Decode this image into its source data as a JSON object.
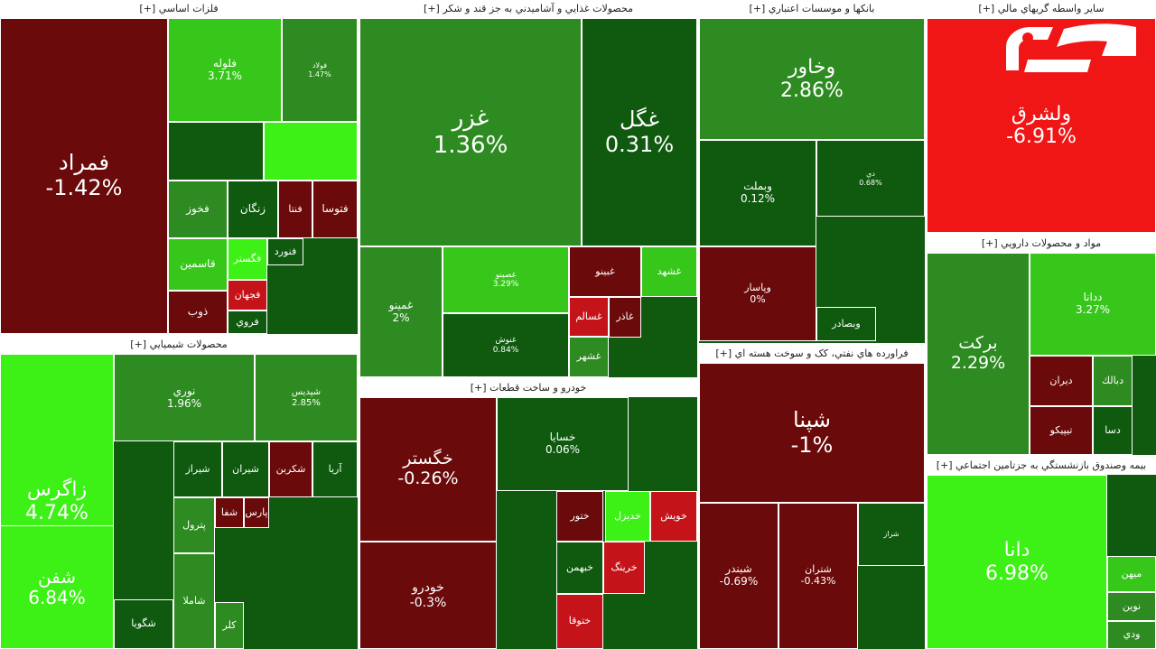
{
  "colors": {
    "dark_red": "#6b0a0a",
    "red": "#c4141a",
    "bright_red": "#f01616",
    "dark_green": "#0f5a0f",
    "green": "#2e8b21",
    "light_green": "#37c71a",
    "bright_green": "#3df016"
  },
  "logo": {
    "name": "rokna-logo",
    "text": "رکنا",
    "color": "#ffffff"
  },
  "sections": [
    {
      "id": "metals",
      "title": "فلزات اساسي [+]",
      "tiles": [
        {
          "name": "فمراد",
          "pct": "-1.42%",
          "c": "dark_red"
        },
        {
          "name": "فلوله",
          "pct": "3.71%",
          "c": "light_green"
        },
        {
          "name": "فولاد",
          "pct": "1.47%",
          "c": "green"
        },
        {
          "name": "",
          "pct": "",
          "c": "dark_green"
        },
        {
          "name": "",
          "pct": "",
          "c": "bright_green"
        },
        {
          "name": "فخوز",
          "pct": "",
          "c": "green"
        },
        {
          "name": "زنگان",
          "pct": "",
          "c": "dark_green"
        },
        {
          "name": "فنتا",
          "pct": "",
          "c": "dark_red"
        },
        {
          "name": "فتوسا",
          "pct": "",
          "c": "dark_red"
        },
        {
          "name": "فگستر",
          "pct": "",
          "c": "bright_green"
        },
        {
          "name": "فنورد",
          "pct": "",
          "c": "dark_green"
        },
        {
          "name": "قاسمين",
          "pct": "",
          "c": "light_green"
        },
        {
          "name": "فجهان",
          "pct": "",
          "c": "red"
        },
        {
          "name": "ذوب",
          "pct": "",
          "c": "dark_red"
        },
        {
          "name": "فروي",
          "pct": "",
          "c": "dark_green"
        }
      ]
    },
    {
      "id": "food",
      "title": "محصولات غذايي و آشاميدني به جز قند و شکر [+]",
      "tiles": [
        {
          "name": "غزر",
          "pct": "1.36%",
          "c": "green"
        },
        {
          "name": "غگل",
          "pct": "0.31%",
          "c": "dark_green"
        },
        {
          "name": "غمينو",
          "pct": "2%",
          "c": "green"
        },
        {
          "name": "غصينو",
          "pct": "3.29%",
          "c": "light_green"
        },
        {
          "name": "غبينو",
          "pct": "",
          "c": "dark_red"
        },
        {
          "name": "غشهد",
          "pct": "",
          "c": "light_green"
        },
        {
          "name": "غنوش",
          "pct": "0.84%",
          "c": "dark_green"
        },
        {
          "name": "غسالم",
          "pct": "",
          "c": "red"
        },
        {
          "name": "غشهر",
          "pct": "",
          "c": "green"
        },
        {
          "name": "غاذر",
          "pct": "",
          "c": "dark_red"
        }
      ]
    },
    {
      "id": "banks",
      "title": "بانکها و موسسات اعتباري [+]",
      "tiles": [
        {
          "name": "وخاور",
          "pct": "2.86%",
          "c": "green"
        },
        {
          "name": "وبملت",
          "pct": "0.12%",
          "c": "dark_green"
        },
        {
          "name": "دي",
          "pct": "0.68%",
          "c": "dark_green"
        },
        {
          "name": "وپاسار",
          "pct": "0%",
          "c": "dark_red"
        },
        {
          "name": "وبصادر",
          "pct": "",
          "c": "dark_green"
        }
      ]
    },
    {
      "id": "financial",
      "title": "ساير واسطه گريهاي مالي [+]",
      "tiles": [
        {
          "name": "ولشرق",
          "pct": "-6.91%",
          "c": "bright_red"
        }
      ]
    },
    {
      "id": "chemical",
      "title": "محصولات شيميايي [+]",
      "tiles": [
        {
          "name": "زاگرس",
          "pct": "4.74%",
          "c": "bright_green"
        },
        {
          "name": "شفن",
          "pct": "6.84%",
          "c": "bright_green"
        },
        {
          "name": "نوري",
          "pct": "1.96%",
          "c": "green"
        },
        {
          "name": "شپديس",
          "pct": "2.85%",
          "c": "green"
        },
        {
          "name": "شيراز",
          "pct": "",
          "c": "dark_green"
        },
        {
          "name": "شيران",
          "pct": "",
          "c": "dark_green"
        },
        {
          "name": "شكربن",
          "pct": "",
          "c": "dark_red"
        },
        {
          "name": "آريا",
          "pct": "",
          "c": "dark_green"
        },
        {
          "name": "پترول",
          "pct": "",
          "c": "green"
        },
        {
          "name": "شفا",
          "pct": "",
          "c": "dark_red"
        },
        {
          "name": "پارس",
          "pct": "",
          "c": "dark_red"
        },
        {
          "name": "شگويا",
          "pct": "",
          "c": "dark_green"
        },
        {
          "name": "شاملا",
          "pct": "",
          "c": "green"
        },
        {
          "name": "كلر",
          "pct": "",
          "c": "green"
        }
      ]
    },
    {
      "id": "auto",
      "title": "خودرو و ساخت قطعات [+]",
      "tiles": [
        {
          "name": "خگستر",
          "pct": "-0.26%",
          "c": "dark_red"
        },
        {
          "name": "خسايا",
          "pct": "0.06%",
          "c": "dark_green"
        },
        {
          "name": "خودرو",
          "pct": "-0.3%",
          "c": "dark_red"
        },
        {
          "name": "ختور",
          "pct": "",
          "c": "dark_red"
        },
        {
          "name": "خديزل",
          "pct": "",
          "c": "bright_green"
        },
        {
          "name": "خويش",
          "pct": "",
          "c": "red"
        },
        {
          "name": "خبهمن",
          "pct": "",
          "c": "dark_green"
        },
        {
          "name": "خرينگ",
          "pct": "",
          "c": "red"
        },
        {
          "name": "ختوقا",
          "pct": "",
          "c": "red"
        }
      ]
    },
    {
      "id": "refinery",
      "title": "فراورده هاي نفتي، کک و سوخت هسته اي [+]",
      "tiles": [
        {
          "name": "شپنا",
          "pct": "-1%",
          "c": "dark_red"
        },
        {
          "name": "شبندر",
          "pct": "-0.69%",
          "c": "dark_red"
        },
        {
          "name": "شتران",
          "pct": "-0.43%",
          "c": "dark_red"
        },
        {
          "name": "شراز",
          "pct": "",
          "c": "dark_green"
        }
      ]
    },
    {
      "id": "pharma",
      "title": "مواد و محصولات دارويي [+]",
      "tiles": [
        {
          "name": "بركت",
          "pct": "2.29%",
          "c": "green"
        },
        {
          "name": "ددانا",
          "pct": "3.27%",
          "c": "light_green"
        },
        {
          "name": "ديران",
          "pct": "",
          "c": "dark_red"
        },
        {
          "name": "دبالك",
          "pct": "",
          "c": "green"
        },
        {
          "name": "تيپيكو",
          "pct": "",
          "c": "dark_red"
        },
        {
          "name": "دسا",
          "pct": "",
          "c": "dark_green"
        }
      ]
    },
    {
      "id": "insurance",
      "title": "بيمه وصندوق بازنشستگي به جزتامين اجتماعي [+]",
      "tiles": [
        {
          "name": "دانا",
          "pct": "6.98%",
          "c": "bright_green"
        },
        {
          "name": "ميهن",
          "pct": "",
          "c": "light_green"
        },
        {
          "name": "نوين",
          "pct": "",
          "c": "green"
        },
        {
          "name": "ودي",
          "pct": "",
          "c": "green"
        }
      ]
    }
  ]
}
